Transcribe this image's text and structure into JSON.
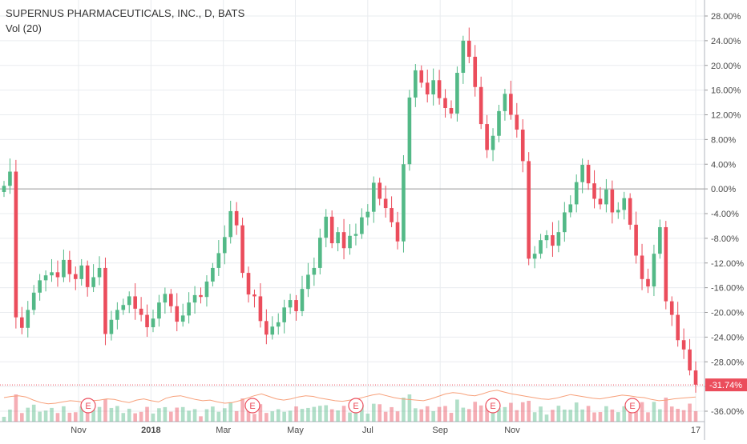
{
  "legend": {
    "title": "SUPERNUS PHARMACEUTICALS, INC., D, BATS",
    "volume_label": "Vol (20)"
  },
  "colors": {
    "up": "#53b987",
    "down": "#eb4d5c",
    "grid": "#e9ecef",
    "axis_text": "#4a4a4a",
    "zero_line": "#9b9b9b",
    "price_line": "#eb4d5c",
    "ma_line": "#f7a07a",
    "event": "#eb4d5c"
  },
  "chart_data": {
    "type": "candlestick",
    "title": "SUPERNUS PHARMACEUTICALS, INC., D, BATS",
    "y_scale": "percent",
    "ylim": [
      -37,
      29
    ],
    "y_ticks": [
      "28.00%",
      "24.00%",
      "20.00%",
      "16.00%",
      "12.00%",
      "8.00%",
      "4.00%",
      "0.00%",
      "-4.00%",
      "-8.00%",
      "-12.00%",
      "-16.00%",
      "-20.00%",
      "-24.00%",
      "-28.00%",
      "-32.00%",
      "-36.00%"
    ],
    "x_ticks": [
      {
        "label": "Nov",
        "month": 2017.833
      },
      {
        "label": "2018",
        "month": 2018.0
      },
      {
        "label": "Mar",
        "month": 2018.167
      },
      {
        "label": "May",
        "month": 2018.333
      },
      {
        "label": "Jul",
        "month": 2018.5
      },
      {
        "label": "Sep",
        "month": 2018.667
      },
      {
        "label": "Nov",
        "month": 2018.833
      },
      {
        "label": "17",
        "month": 2018.96
      }
    ],
    "last_value_label": "-31.74%",
    "last_value": -31.74,
    "earnings_events": [
      "E",
      "E",
      "E",
      "E",
      "E"
    ],
    "volume_series_name": "Vol (20)",
    "series": [
      {
        "name": "closes_percent",
        "values": [
          0.5,
          2.8,
          -20.8,
          -22.5,
          -19.6,
          -16.8,
          -14.8,
          -14.0,
          -13.5,
          -14.3,
          -11.5,
          -13.8,
          -14.6,
          -12.4,
          -15.9,
          -14.3,
          -12.8,
          -23.5,
          -21.2,
          -19.6,
          -18.8,
          -17.4,
          -19.4,
          -20.4,
          -22.4,
          -21.0,
          -18.4,
          -17.0,
          -19.0,
          -21.5,
          -20.5,
          -18.4,
          -17.2,
          -17.5,
          -15.0,
          -12.8,
          -10.4,
          -7.8,
          -3.6,
          -5.9,
          -13.6,
          -17.1,
          -17.4,
          -21.4,
          -23.6,
          -22.3,
          -21.6,
          -19.2,
          -18.0,
          -19.8,
          -16.2,
          -13.9,
          -12.8,
          -7.9,
          -4.5,
          -8.8,
          -7.0,
          -9.6,
          -7.6,
          -7.3,
          -4.6,
          -3.7,
          1.0,
          -1.6,
          -3.1,
          -5.4,
          -8.5,
          4.0,
          14.8,
          19.2,
          17.2,
          15.3,
          17.6,
          14.7,
          13.1,
          12.2,
          18.8,
          24.0,
          21.4,
          16.5,
          10.5,
          6.3,
          8.6,
          12.6,
          15.4,
          12.0,
          9.6,
          4.5,
          -11.3,
          -10.5,
          -8.3,
          -7.5,
          -9.2,
          -7.0,
          -3.8,
          -2.5,
          1.1,
          3.9,
          0.9,
          -1.6,
          -2.5,
          -0.1,
          -3.8,
          -3.4,
          -1.5,
          -5.8,
          -10.8,
          -14.6,
          -15.8,
          -10.5,
          -6.2,
          -18.2,
          -20.4,
          -24.5,
          -26.0,
          -29.4,
          -31.7
        ]
      },
      {
        "name": "ma_percent",
        "values": [
          -33.8,
          -33.6,
          -33.5,
          -33.7,
          -34.2,
          -34.6,
          -34.8,
          -34.7,
          -34.5,
          -34.3,
          -34.4,
          -34.6,
          -34.3,
          -34.2,
          -34.0,
          -34.1,
          -34.4,
          -34.6,
          -34.2,
          -34.0,
          -34.3,
          -34.5,
          -33.9,
          -33.6,
          -33.5,
          -33.8,
          -34.1,
          -34.3,
          -34.2,
          -34.5,
          -34.7,
          -34.6,
          -34.3,
          -33.9,
          -33.5,
          -33.2,
          -33.6,
          -34.0,
          -34.2,
          -34.0,
          -33.7,
          -33.5,
          -33.6,
          -33.9,
          -34.1,
          -34.3,
          -34.4,
          -34.2,
          -34.0,
          -33.7,
          -33.4,
          -33.2,
          -33.5,
          -33.8,
          -34.0,
          -34.1,
          -34.2,
          -34.3,
          -34.0,
          -33.6,
          -33.2,
          -33.0,
          -33.1,
          -33.4,
          -33.5,
          -33.2,
          -32.8,
          -32.6,
          -32.9,
          -33.2,
          -33.4,
          -33.6,
          -33.8,
          -34.0,
          -34.1,
          -33.9,
          -33.6,
          -33.3,
          -33.5,
          -33.7,
          -33.9,
          -34.0,
          -33.8,
          -33.6,
          -33.4,
          -33.5,
          -33.7,
          -33.8,
          -34.1,
          -34.3,
          -34.2,
          -34.0,
          -33.9,
          -33.8,
          -33.7
        ]
      }
    ]
  }
}
